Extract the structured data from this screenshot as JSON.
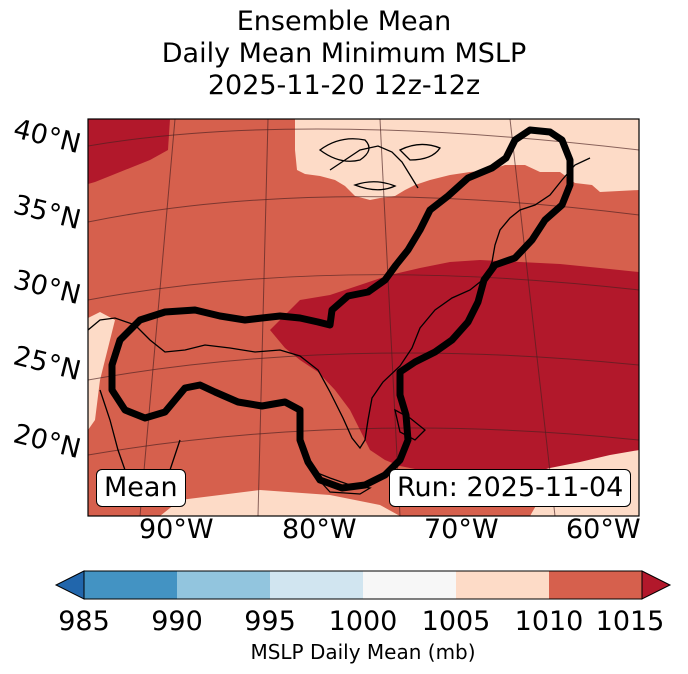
{
  "title": {
    "line1": "Ensemble Mean",
    "line2": "Daily Mean Minimum MSLP",
    "line3": "2025-11-20 12z-12z"
  },
  "map": {
    "lat_labels": [
      "40°N",
      "35°N",
      "30°N",
      "25°N",
      "20°N"
    ],
    "lon_labels": [
      "90°W",
      "80°W",
      "70°W",
      "60°W"
    ],
    "mean_label": "Mean",
    "run_label": "Run: 2025-11-04",
    "region": "Gulf of Mexico, US East Coast, western Atlantic",
    "outline_color": "#000000"
  },
  "colorbar": {
    "label": "MSLP Daily Mean (mb)",
    "ticks": [
      "985",
      "990",
      "995",
      "1000",
      "1005",
      "1010",
      "1015"
    ],
    "colors": [
      "#4393c3",
      "#92c5de",
      "#d1e5f0",
      "#f7f7f7",
      "#fddbc7",
      "#d6604d",
      "#b2182b"
    ],
    "under_color": "#2166ac",
    "over_color": "#b2182b"
  },
  "field_colors": {
    "light": "#fddbc7",
    "mid": "#d6604d",
    "dark": "#b2182b"
  }
}
